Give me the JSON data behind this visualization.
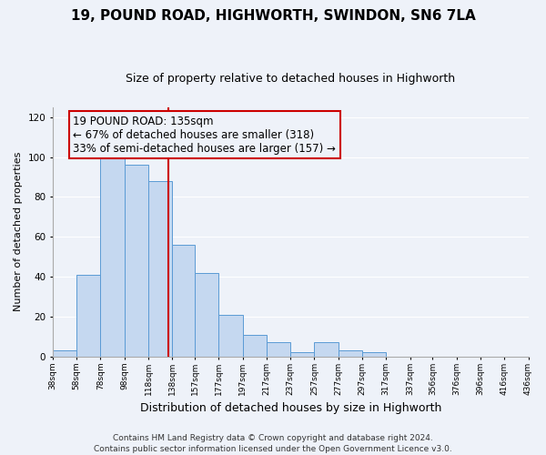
{
  "title": "19, POUND ROAD, HIGHWORTH, SWINDON, SN6 7LA",
  "subtitle": "Size of property relative to detached houses in Highworth",
  "xlabel": "Distribution of detached houses by size in Highworth",
  "ylabel": "Number of detached properties",
  "bins": [
    38,
    58,
    78,
    98,
    118,
    138,
    157,
    177,
    197,
    217,
    237,
    257,
    277,
    297,
    317,
    337,
    356,
    376,
    396,
    416,
    436
  ],
  "counts": [
    3,
    41,
    100,
    96,
    88,
    56,
    42,
    21,
    11,
    7,
    2,
    7,
    3,
    2,
    0,
    0,
    0,
    0,
    0,
    0
  ],
  "bar_color": "#c5d8f0",
  "bar_edge_color": "#5b9bd5",
  "property_size": 135,
  "vline_color": "#cc0000",
  "annotation_line1": "19 POUND ROAD: 135sqm",
  "annotation_line2": "← 67% of detached houses are smaller (318)",
  "annotation_line3": "33% of semi-detached houses are larger (157) →",
  "annotation_box_edge": "#cc0000",
  "annotation_fontsize": 8.5,
  "ylim": [
    0,
    125
  ],
  "yticks": [
    0,
    20,
    40,
    60,
    80,
    100,
    120
  ],
  "tick_labels": [
    "38sqm",
    "58sqm",
    "78sqm",
    "98sqm",
    "118sqm",
    "138sqm",
    "157sqm",
    "177sqm",
    "197sqm",
    "217sqm",
    "237sqm",
    "257sqm",
    "277sqm",
    "297sqm",
    "317sqm",
    "337sqm",
    "356sqm",
    "376sqm",
    "396sqm",
    "416sqm",
    "436sqm"
  ],
  "footer": "Contains HM Land Registry data © Crown copyright and database right 2024.\nContains public sector information licensed under the Open Government Licence v3.0.",
  "bg_color": "#eef2f9",
  "grid_color": "#ffffff",
  "title_fontsize": 11,
  "subtitle_fontsize": 9,
  "ylabel_fontsize": 8,
  "xlabel_fontsize": 9,
  "footer_fontsize": 6.5
}
